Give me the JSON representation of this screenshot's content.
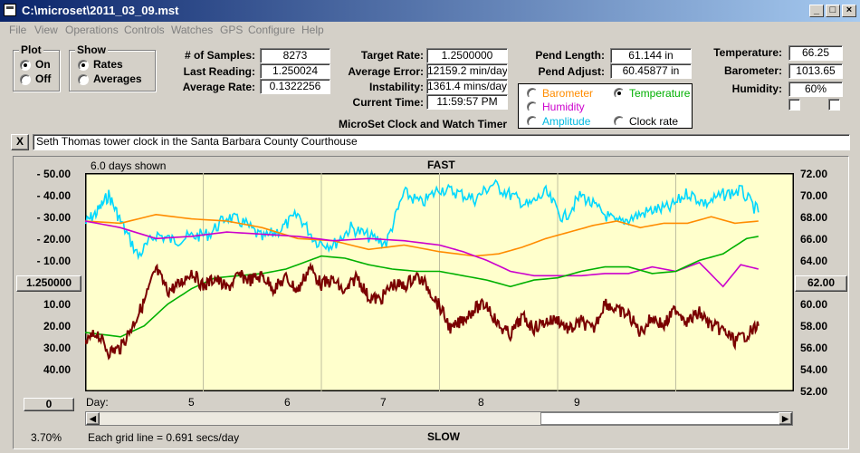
{
  "window": {
    "title": "C:\\microset\\2011_03_09.mst"
  },
  "menu": [
    "File",
    "View",
    "Operations",
    "Controls",
    "Watches",
    "GPS",
    "Configure",
    "Help"
  ],
  "plot": {
    "title": "Plot",
    "on": "On",
    "off": "Off",
    "selected": "On"
  },
  "show": {
    "title": "Show",
    "rates": "Rates",
    "averages": "Averages",
    "selected": "Rates"
  },
  "stats": {
    "samples_label": "# of Samples:",
    "samples": "8273",
    "last_label": "Last Reading:",
    "last": "1.250024",
    "avg_label": "Average Rate:",
    "avg": "0.1322256"
  },
  "rates": {
    "target_label": "Target Rate:",
    "target": "1.2500000",
    "error_label": "Average Error:",
    "error": "12159.2 min/day",
    "instab_label": "Instability:",
    "instab": "1361.4 mins/day",
    "time_label": "Current Time:",
    "time": "11:59:57 PM"
  },
  "pendulum": {
    "length_label": "Pend Length:",
    "length": "61.144 in",
    "adjust_label": "Pend Adjust:",
    "adjust": "60.45877 in"
  },
  "env": {
    "temp_label": "Temperature:",
    "temp": "66.25",
    "baro_label": "Barometer:",
    "baro": "1013.65",
    "hum_label": "Humidity:",
    "hum": "60%"
  },
  "app_caption": "MicroSet Clock and Watch Timer",
  "selector": {
    "barometer": "Barometer",
    "temperature": "Temperature",
    "humidity": "Humidity",
    "amplitude": "Amplitude",
    "clockrate": "Clock rate",
    "selected": "Temperature"
  },
  "colors": {
    "barometer": "#ff8c00",
    "temperature": "#00b000",
    "humidity": "#cc00cc",
    "amplitude": "#00d8ff",
    "clockrate": "#7a0000",
    "plot_bg": "#ffffcc"
  },
  "description": "Seth Thomas tower clock in the Santa Barbara County Courthouse",
  "close_glyph": "X",
  "chart": {
    "days_shown": "6.0 days shown",
    "top_label": "FAST",
    "bottom_label": "SLOW",
    "center_button": "1.250000",
    "left_bottom_button": "0",
    "right_button": "62.00",
    "percent": "3.70%",
    "grid_note": "Each grid line = 0.691 secs/day",
    "day_label": "Day:",
    "scroll_left": "◀",
    "scroll_right": "▶"
  },
  "chart_data": {
    "type": "line",
    "x_range": [
      4.0,
      10.0
    ],
    "x_ticks": [
      "5",
      "6",
      "7",
      "8",
      "9"
    ],
    "left_ticks": [
      "- 50.00",
      "- 40.00",
      "- 30.00",
      "- 20.00",
      "- 10.00",
      "10.00",
      "20.00",
      "30.00",
      "40.00"
    ],
    "left_range": [
      -50,
      50
    ],
    "right_ticks": [
      "72.00",
      "70.00",
      "68.00",
      "66.00",
      "64.00",
      "60.00",
      "58.00",
      "56.00",
      "54.00",
      "52.00"
    ],
    "right_range": [
      52,
      72
    ],
    "series": [
      {
        "key": "amplitude",
        "color": "#00d8ff",
        "x": [
          4.0,
          4.1,
          4.2,
          4.3,
          4.45,
          4.6,
          4.75,
          4.9,
          5.05,
          5.2,
          5.35,
          5.5,
          5.65,
          5.8,
          5.95,
          6.1,
          6.25,
          6.4,
          6.55,
          6.7,
          6.85,
          7.0,
          7.15,
          7.3,
          7.45,
          7.6,
          7.75,
          7.9,
          8.05,
          8.2,
          8.35,
          8.5,
          8.65,
          8.8,
          8.95,
          9.1,
          9.25,
          9.4,
          9.55,
          9.7
        ],
        "y": [
          -27,
          -32,
          -40,
          -28,
          -12,
          -22,
          -19,
          -21,
          -22,
          -30,
          -27,
          -20,
          -24,
          -31,
          -19,
          -17,
          -25,
          -21,
          -18,
          -41,
          -36,
          -43,
          -41,
          -38,
          -45,
          -40,
          -35,
          -41,
          -29,
          -40,
          -33,
          -27,
          -30,
          -33,
          -34,
          -41,
          -36,
          -40,
          -42,
          -32
        ]
      },
      {
        "key": "barometer",
        "color": "#ff8c00",
        "x": [
          4.0,
          4.3,
          4.6,
          4.9,
          5.2,
          5.5,
          5.8,
          6.1,
          6.4,
          6.7,
          7.0,
          7.3,
          7.5,
          7.7,
          7.9,
          8.1,
          8.3,
          8.5,
          8.7,
          8.9,
          9.1,
          9.3,
          9.5,
          9.7
        ],
        "y": [
          -28,
          -27,
          -31,
          -29,
          -28,
          -25,
          -20,
          -19,
          -15,
          -17,
          -14,
          -12,
          -13,
          -16,
          -20,
          -23,
          -26,
          -28,
          -25,
          -27,
          -27,
          -30,
          -27,
          -28
        ]
      },
      {
        "key": "humidity",
        "color": "#cc00cc",
        "x": [
          4.0,
          4.3,
          4.6,
          4.9,
          5.2,
          5.5,
          5.8,
          6.1,
          6.4,
          6.7,
          7.0,
          7.2,
          7.4,
          7.6,
          7.8,
          8.0,
          8.2,
          8.4,
          8.6,
          8.8,
          9.0,
          9.2,
          9.4,
          9.55,
          9.7
        ],
        "y": [
          -28,
          -25,
          -20,
          -21,
          -23,
          -22,
          -21,
          -19,
          -20,
          -19,
          -17,
          -14,
          -10,
          -5,
          -3,
          -3,
          -3,
          -4,
          -4,
          -7,
          -5,
          -9,
          2,
          -8,
          -6
        ]
      },
      {
        "key": "temperature",
        "color": "#00b000",
        "x": [
          4.0,
          4.3,
          4.5,
          4.7,
          4.9,
          5.1,
          5.3,
          5.5,
          5.7,
          5.9,
          6.0,
          6.2,
          6.4,
          6.6,
          6.8,
          7.0,
          7.2,
          7.4,
          7.6,
          7.8,
          8.0,
          8.2,
          8.4,
          8.6,
          8.8,
          9.0,
          9.2,
          9.4,
          9.6,
          9.7
        ],
        "y": [
          23,
          25,
          20,
          10,
          3,
          -2,
          -3,
          -4,
          -6,
          -10,
          -12,
          -11,
          -8,
          -6,
          -5,
          -5,
          -3,
          -1,
          2,
          -1,
          -2,
          -5,
          -7,
          -7,
          -4,
          -5,
          -10,
          -13,
          -20,
          -21
        ]
      },
      {
        "key": "clockrate",
        "color": "#7a0000",
        "x": [
          4.0,
          4.1,
          4.2,
          4.3,
          4.4,
          4.5,
          4.6,
          4.7,
          4.8,
          4.9,
          5.0,
          5.1,
          5.2,
          5.3,
          5.4,
          5.5,
          5.6,
          5.7,
          5.8,
          5.9,
          6.0,
          6.1,
          6.2,
          6.3,
          6.4,
          6.5,
          6.6,
          6.7,
          6.8,
          6.9,
          7.0,
          7.1,
          7.2,
          7.3,
          7.4,
          7.5,
          7.6,
          7.7,
          7.8,
          7.9,
          8.0,
          8.1,
          8.2,
          8.3,
          8.4,
          8.5,
          8.6,
          8.7,
          8.8,
          8.9,
          9.0,
          9.1,
          9.2,
          9.3,
          9.4,
          9.5,
          9.6,
          9.7
        ],
        "y": [
          28,
          23,
          32,
          30,
          20,
          9,
          -6,
          4,
          1,
          -5,
          2,
          -2,
          3,
          -3,
          -1,
          -3,
          3,
          -2,
          4,
          -7,
          1,
          -1,
          5,
          -3,
          7,
          8,
          1,
          2,
          -3,
          2,
          11,
          22,
          17,
          12,
          10,
          20,
          24,
          16,
          21,
          18,
          17,
          22,
          18,
          22,
          9,
          13,
          15,
          23,
          16,
          20,
          12,
          18,
          14,
          20,
          22,
          27,
          24,
          20
        ]
      }
    ]
  }
}
